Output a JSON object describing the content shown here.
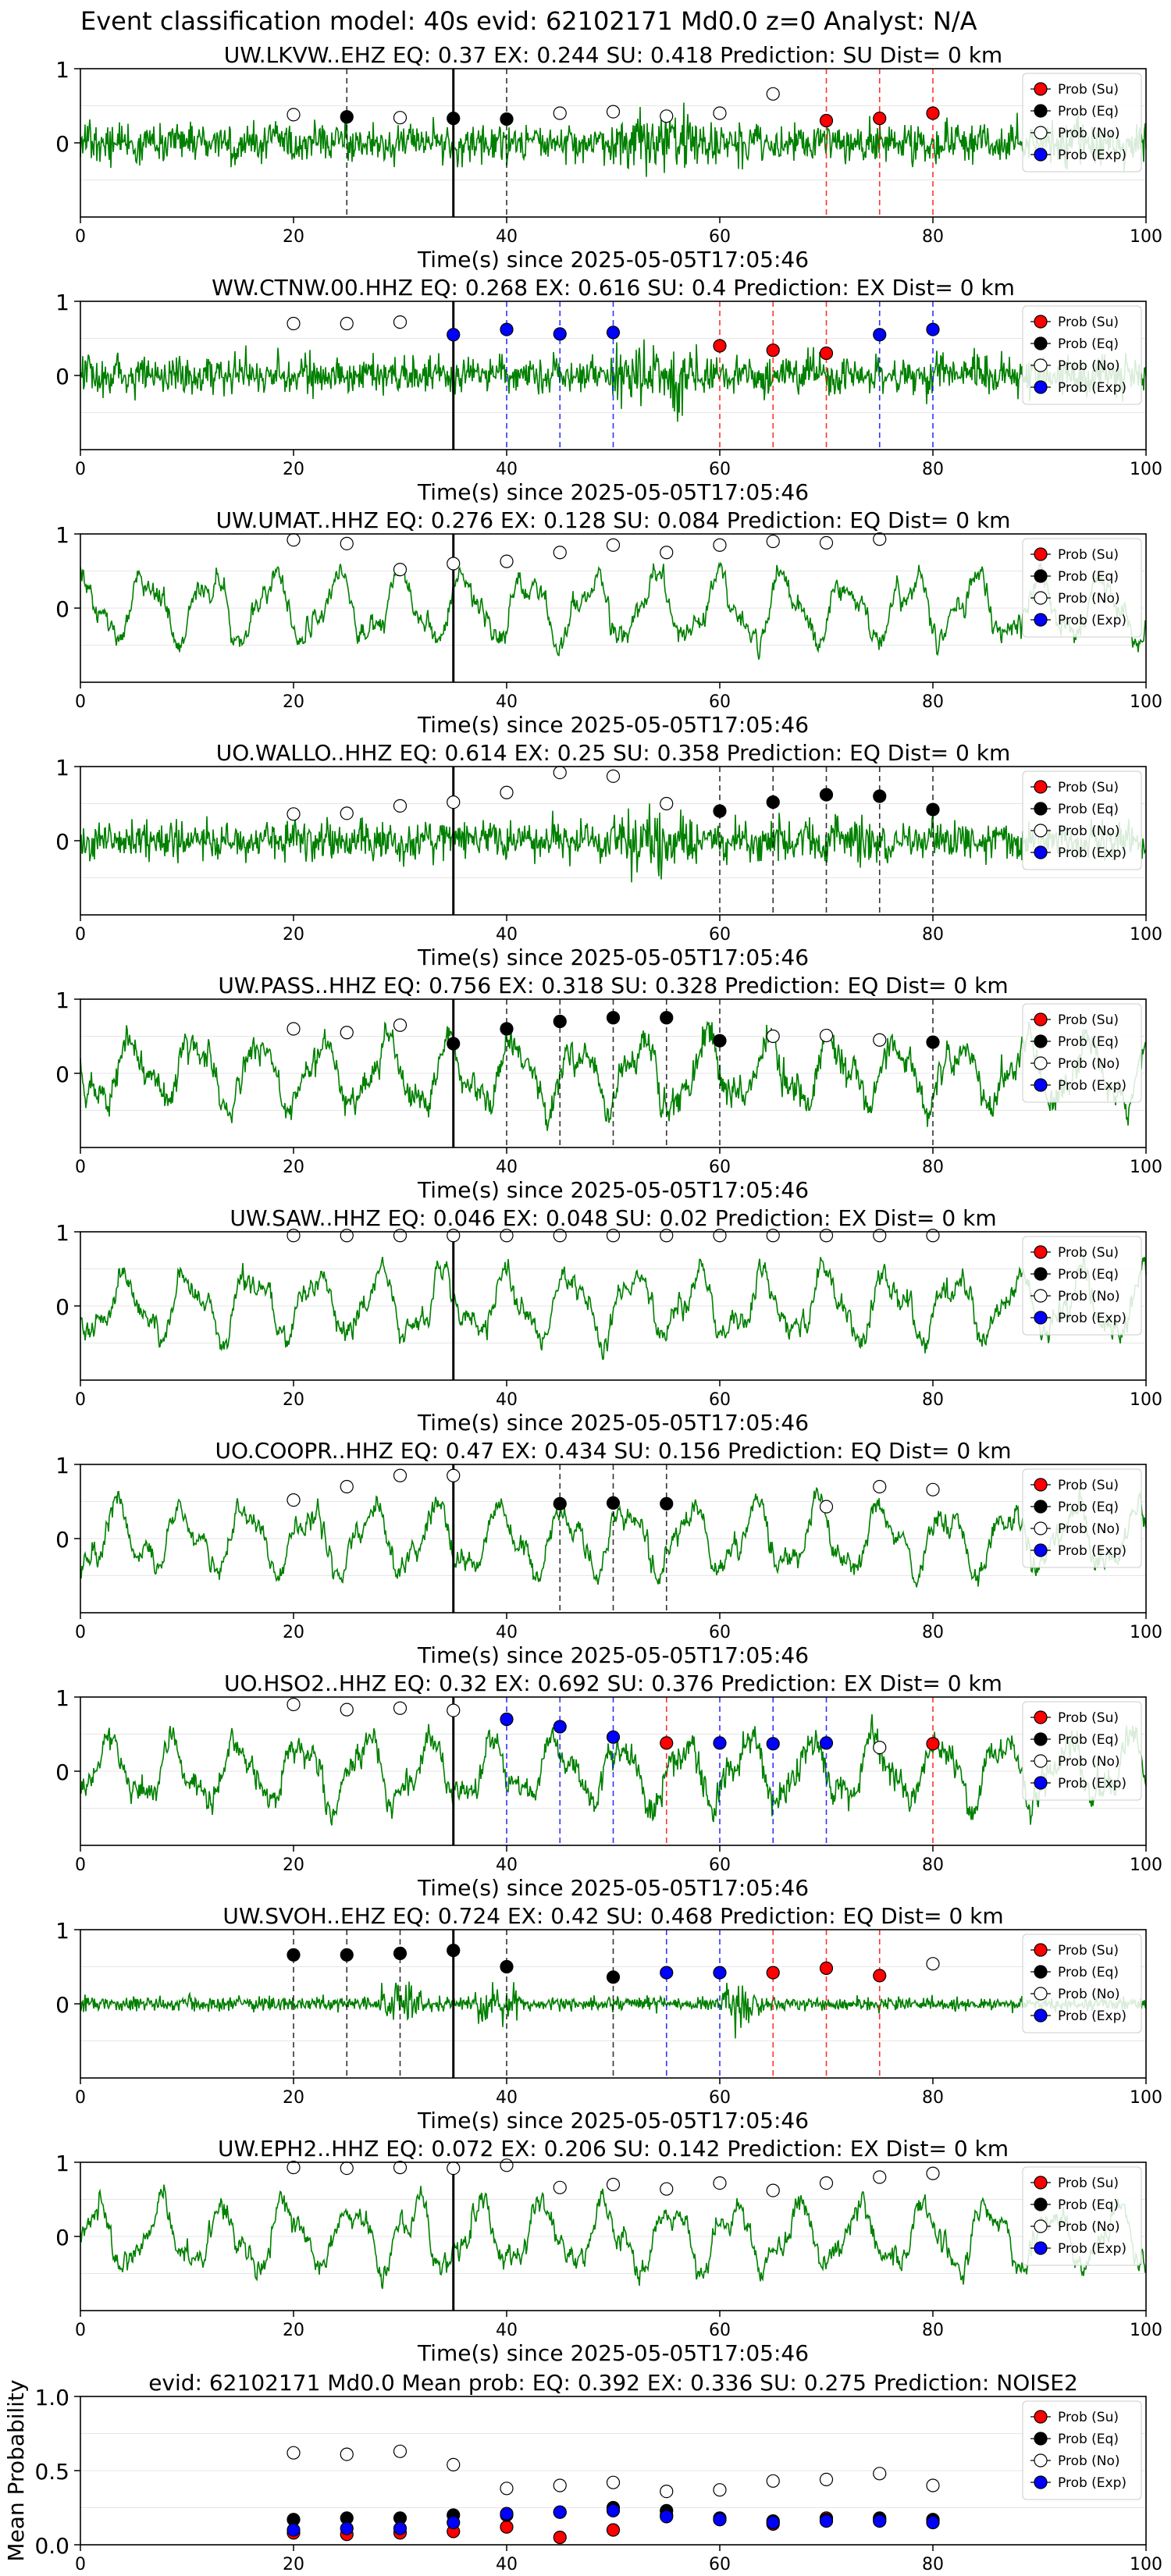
{
  "suptitle": "Event classification model: 40s evid: 62102171 Md0.0 z=0 Analyst: N/A",
  "legend_labels": [
    "Prob (Su)",
    "Prob (Eq)",
    "Prob (No)",
    "Prob (Exp)"
  ],
  "colors": {
    "su": "#ff0000",
    "eq": "#000000",
    "no": "#ffffff",
    "exp": "#0000ff",
    "waveform": "#008000",
    "marker_edge": "#000000"
  },
  "chart_data": [
    {
      "type": "line",
      "station": "UW.LKVW..EHZ",
      "title_parts": [
        "UW.LKVW..EHZ",
        "EQ: 0.37",
        "EX: 0.244",
        "SU: 0.418",
        "Prediction: SU",
        "Dist= 0 km"
      ],
      "xlabel": "Time(s) since 2025-05-05T17:05:46",
      "xlim": [
        0,
        100
      ],
      "ylim": [
        -1,
        1
      ],
      "xticks": [
        0,
        20,
        40,
        60,
        80,
        100
      ],
      "yticks": [
        0,
        1
      ],
      "arrival_time": 35,
      "waveform_style": "noisy",
      "markers": [
        {
          "t": 20,
          "cls": "no",
          "p": 0.38
        },
        {
          "t": 25,
          "cls": "eq",
          "p": 0.35
        },
        {
          "t": 30,
          "cls": "no",
          "p": 0.34
        },
        {
          "t": 35,
          "cls": "eq",
          "p": 0.33
        },
        {
          "t": 40,
          "cls": "eq",
          "p": 0.32
        },
        {
          "t": 45,
          "cls": "no",
          "p": 0.4
        },
        {
          "t": 50,
          "cls": "no",
          "p": 0.42
        },
        {
          "t": 55,
          "cls": "no",
          "p": 0.36
        },
        {
          "t": 60,
          "cls": "no",
          "p": 0.4
        },
        {
          "t": 65,
          "cls": "no",
          "p": 0.66
        },
        {
          "t": 70,
          "cls": "su",
          "p": 0.3
        },
        {
          "t": 75,
          "cls": "su",
          "p": 0.33
        },
        {
          "t": 80,
          "cls": "su",
          "p": 0.4
        }
      ]
    },
    {
      "type": "line",
      "station": "WW.CTNW.00.HHZ",
      "title_parts": [
        "WW.CTNW.00.HHZ",
        "EQ: 0.268",
        "EX: 0.616",
        "SU: 0.4",
        "Prediction: EX",
        "Dist= 0 km"
      ],
      "xlabel": "Time(s) since 2025-05-05T17:05:46",
      "xlim": [
        0,
        100
      ],
      "ylim": [
        -1,
        1
      ],
      "xticks": [
        0,
        20,
        40,
        60,
        80,
        100
      ],
      "yticks": [
        0,
        1
      ],
      "arrival_time": 35,
      "waveform_style": "noisy",
      "markers": [
        {
          "t": 20,
          "cls": "no",
          "p": 0.7
        },
        {
          "t": 25,
          "cls": "no",
          "p": 0.7
        },
        {
          "t": 30,
          "cls": "no",
          "p": 0.72
        },
        {
          "t": 35,
          "cls": "exp",
          "p": 0.55
        },
        {
          "t": 40,
          "cls": "exp",
          "p": 0.62
        },
        {
          "t": 45,
          "cls": "exp",
          "p": 0.56
        },
        {
          "t": 50,
          "cls": "exp",
          "p": 0.58
        },
        {
          "t": 60,
          "cls": "su",
          "p": 0.4
        },
        {
          "t": 65,
          "cls": "su",
          "p": 0.34
        },
        {
          "t": 70,
          "cls": "su",
          "p": 0.3
        },
        {
          "t": 75,
          "cls": "exp",
          "p": 0.55
        },
        {
          "t": 80,
          "cls": "exp",
          "p": 0.62
        }
      ]
    },
    {
      "type": "line",
      "station": "UW.UMAT..HHZ",
      "title_parts": [
        "UW.UMAT..HHZ",
        "EQ: 0.276",
        "EX: 0.128",
        "SU: 0.084",
        "Prediction: EQ",
        "Dist= 0 km"
      ],
      "xlabel": "Time(s) since 2025-05-05T17:05:46",
      "xlim": [
        0,
        100
      ],
      "ylim": [
        -1,
        1
      ],
      "xticks": [
        0,
        20,
        40,
        60,
        80,
        100
      ],
      "yticks": [
        0,
        1
      ],
      "arrival_time": 35,
      "waveform_style": "smooth",
      "markers": [
        {
          "t": 20,
          "cls": "no",
          "p": 0.92
        },
        {
          "t": 25,
          "cls": "no",
          "p": 0.87
        },
        {
          "t": 30,
          "cls": "no",
          "p": 0.52
        },
        {
          "t": 35,
          "cls": "no",
          "p": 0.6
        },
        {
          "t": 40,
          "cls": "no",
          "p": 0.63
        },
        {
          "t": 45,
          "cls": "no",
          "p": 0.75
        },
        {
          "t": 50,
          "cls": "no",
          "p": 0.85
        },
        {
          "t": 55,
          "cls": "no",
          "p": 0.75
        },
        {
          "t": 60,
          "cls": "no",
          "p": 0.85
        },
        {
          "t": 65,
          "cls": "no",
          "p": 0.9
        },
        {
          "t": 70,
          "cls": "no",
          "p": 0.88
        },
        {
          "t": 75,
          "cls": "no",
          "p": 0.93
        }
      ]
    },
    {
      "type": "line",
      "station": "UO.WALLO..HHZ",
      "title_parts": [
        "UO.WALLO..HHZ",
        "EQ: 0.614",
        "EX: 0.25",
        "SU: 0.358",
        "Prediction: EQ",
        "Dist= 0 km"
      ],
      "xlabel": "Time(s) since 2025-05-05T17:05:46",
      "xlim": [
        0,
        100
      ],
      "ylim": [
        -1,
        1
      ],
      "xticks": [
        0,
        20,
        40,
        60,
        80,
        100
      ],
      "yticks": [
        0,
        1
      ],
      "arrival_time": 35,
      "waveform_style": "noisy",
      "markers": [
        {
          "t": 20,
          "cls": "no",
          "p": 0.36
        },
        {
          "t": 25,
          "cls": "no",
          "p": 0.37
        },
        {
          "t": 30,
          "cls": "no",
          "p": 0.47
        },
        {
          "t": 35,
          "cls": "no",
          "p": 0.52
        },
        {
          "t": 40,
          "cls": "no",
          "p": 0.65
        },
        {
          "t": 45,
          "cls": "no",
          "p": 0.92
        },
        {
          "t": 50,
          "cls": "no",
          "p": 0.87
        },
        {
          "t": 55,
          "cls": "no",
          "p": 0.5
        },
        {
          "t": 60,
          "cls": "eq",
          "p": 0.4
        },
        {
          "t": 65,
          "cls": "eq",
          "p": 0.52
        },
        {
          "t": 70,
          "cls": "eq",
          "p": 0.62
        },
        {
          "t": 75,
          "cls": "eq",
          "p": 0.6
        },
        {
          "t": 80,
          "cls": "eq",
          "p": 0.42
        }
      ]
    },
    {
      "type": "line",
      "station": "UW.PASS..HHZ",
      "title_parts": [
        "UW.PASS..HHZ",
        "EQ: 0.756",
        "EX: 0.318",
        "SU: 0.328",
        "Prediction: EQ",
        "Dist= 0 km"
      ],
      "xlabel": "Time(s) since 2025-05-05T17:05:46",
      "xlim": [
        0,
        100
      ],
      "ylim": [
        -1,
        1
      ],
      "xticks": [
        0,
        20,
        40,
        60,
        80,
        100
      ],
      "yticks": [
        0,
        1
      ],
      "arrival_time": 35,
      "waveform_style": "mixed",
      "markers": [
        {
          "t": 20,
          "cls": "no",
          "p": 0.6
        },
        {
          "t": 25,
          "cls": "no",
          "p": 0.55
        },
        {
          "t": 30,
          "cls": "no",
          "p": 0.65
        },
        {
          "t": 35,
          "cls": "eq",
          "p": 0.4
        },
        {
          "t": 40,
          "cls": "eq",
          "p": 0.6
        },
        {
          "t": 45,
          "cls": "eq",
          "p": 0.7
        },
        {
          "t": 50,
          "cls": "eq",
          "p": 0.75
        },
        {
          "t": 55,
          "cls": "eq",
          "p": 0.75
        },
        {
          "t": 60,
          "cls": "eq",
          "p": 0.44
        },
        {
          "t": 65,
          "cls": "no",
          "p": 0.5
        },
        {
          "t": 70,
          "cls": "no",
          "p": 0.51
        },
        {
          "t": 75,
          "cls": "no",
          "p": 0.45
        },
        {
          "t": 80,
          "cls": "eq",
          "p": 0.42
        }
      ]
    },
    {
      "type": "line",
      "station": "UW.SAW..HHZ",
      "title_parts": [
        "UW.SAW..HHZ",
        "EQ: 0.046",
        "EX: 0.048",
        "SU: 0.02",
        "Prediction: EX",
        "Dist= 0 km"
      ],
      "xlabel": "Time(s) since 2025-05-05T17:05:46",
      "xlim": [
        0,
        100
      ],
      "ylim": [
        -1,
        1
      ],
      "xticks": [
        0,
        20,
        40,
        60,
        80,
        100
      ],
      "yticks": [
        0,
        1
      ],
      "arrival_time": 35,
      "waveform_style": "smooth",
      "markers": [
        {
          "t": 20,
          "cls": "no",
          "p": 0.95
        },
        {
          "t": 25,
          "cls": "no",
          "p": 0.95
        },
        {
          "t": 30,
          "cls": "no",
          "p": 0.95
        },
        {
          "t": 35,
          "cls": "no",
          "p": 0.95
        },
        {
          "t": 40,
          "cls": "no",
          "p": 0.95
        },
        {
          "t": 45,
          "cls": "no",
          "p": 0.95
        },
        {
          "t": 50,
          "cls": "no",
          "p": 0.95
        },
        {
          "t": 55,
          "cls": "no",
          "p": 0.95
        },
        {
          "t": 60,
          "cls": "no",
          "p": 0.95
        },
        {
          "t": 65,
          "cls": "no",
          "p": 0.95
        },
        {
          "t": 70,
          "cls": "no",
          "p": 0.95
        },
        {
          "t": 75,
          "cls": "no",
          "p": 0.95
        },
        {
          "t": 80,
          "cls": "no",
          "p": 0.95
        }
      ]
    },
    {
      "type": "line",
      "station": "UO.COOPR..HHZ",
      "title_parts": [
        "UO.COOPR..HHZ",
        "EQ: 0.47",
        "EX: 0.434",
        "SU: 0.156",
        "Prediction: EQ",
        "Dist= 0 km"
      ],
      "xlabel": "Time(s) since 2025-05-05T17:05:46",
      "xlim": [
        0,
        100
      ],
      "ylim": [
        -1,
        1
      ],
      "xticks": [
        0,
        20,
        40,
        60,
        80,
        100
      ],
      "yticks": [
        0,
        1
      ],
      "arrival_time": 35,
      "waveform_style": "smooth",
      "markers": [
        {
          "t": 20,
          "cls": "no",
          "p": 0.52
        },
        {
          "t": 25,
          "cls": "no",
          "p": 0.7
        },
        {
          "t": 30,
          "cls": "no",
          "p": 0.85
        },
        {
          "t": 35,
          "cls": "no",
          "p": 0.85
        },
        {
          "t": 45,
          "cls": "eq",
          "p": 0.47
        },
        {
          "t": 50,
          "cls": "eq",
          "p": 0.48
        },
        {
          "t": 55,
          "cls": "eq",
          "p": 0.47
        },
        {
          "t": 70,
          "cls": "no",
          "p": 0.43
        },
        {
          "t": 75,
          "cls": "no",
          "p": 0.7
        },
        {
          "t": 80,
          "cls": "no",
          "p": 0.66
        }
      ]
    },
    {
      "type": "line",
      "station": "UO.HSO2..HHZ",
      "title_parts": [
        "UO.HSO2..HHZ",
        "EQ: 0.32",
        "EX: 0.692",
        "SU: 0.376",
        "Prediction: EX",
        "Dist= 0 km"
      ],
      "xlabel": "Time(s) since 2025-05-05T17:05:46",
      "xlim": [
        0,
        100
      ],
      "ylim": [
        -1,
        1
      ],
      "xticks": [
        0,
        20,
        40,
        60,
        80,
        100
      ],
      "yticks": [
        0,
        1
      ],
      "arrival_time": 35,
      "waveform_style": "mixed",
      "markers": [
        {
          "t": 20,
          "cls": "no",
          "p": 0.9
        },
        {
          "t": 25,
          "cls": "no",
          "p": 0.83
        },
        {
          "t": 30,
          "cls": "no",
          "p": 0.85
        },
        {
          "t": 35,
          "cls": "no",
          "p": 0.82
        },
        {
          "t": 40,
          "cls": "exp",
          "p": 0.7
        },
        {
          "t": 45,
          "cls": "exp",
          "p": 0.6
        },
        {
          "t": 50,
          "cls": "exp",
          "p": 0.46
        },
        {
          "t": 55,
          "cls": "su",
          "p": 0.38
        },
        {
          "t": 60,
          "cls": "exp",
          "p": 0.38
        },
        {
          "t": 65,
          "cls": "exp",
          "p": 0.37
        },
        {
          "t": 70,
          "cls": "exp",
          "p": 0.38
        },
        {
          "t": 75,
          "cls": "no",
          "p": 0.32
        },
        {
          "t": 80,
          "cls": "su",
          "p": 0.37
        }
      ]
    },
    {
      "type": "line",
      "station": "UW.SVOH..EHZ",
      "title_parts": [
        "UW.SVOH..EHZ",
        "EQ: 0.724",
        "EX: 0.42",
        "SU: 0.468",
        "Prediction: EQ",
        "Dist= 0 km"
      ],
      "xlabel": "Time(s) since 2025-05-05T17:05:46",
      "xlim": [
        0,
        100
      ],
      "ylim": [
        -1,
        1
      ],
      "xticks": [
        0,
        20,
        40,
        60,
        80,
        100
      ],
      "yticks": [
        0,
        1
      ],
      "arrival_time": 35,
      "waveform_style": "quiet",
      "markers": [
        {
          "t": 20,
          "cls": "eq",
          "p": 0.66
        },
        {
          "t": 25,
          "cls": "eq",
          "p": 0.66
        },
        {
          "t": 30,
          "cls": "eq",
          "p": 0.68
        },
        {
          "t": 35,
          "cls": "eq",
          "p": 0.72
        },
        {
          "t": 40,
          "cls": "eq",
          "p": 0.5
        },
        {
          "t": 50,
          "cls": "eq",
          "p": 0.36
        },
        {
          "t": 55,
          "cls": "exp",
          "p": 0.42
        },
        {
          "t": 60,
          "cls": "exp",
          "p": 0.42
        },
        {
          "t": 65,
          "cls": "su",
          "p": 0.42
        },
        {
          "t": 70,
          "cls": "su",
          "p": 0.48
        },
        {
          "t": 75,
          "cls": "su",
          "p": 0.38
        },
        {
          "t": 80,
          "cls": "no",
          "p": 0.54
        }
      ]
    },
    {
      "type": "line",
      "station": "UW.EPH2..HHZ",
      "title_parts": [
        "UW.EPH2..HHZ",
        "EQ: 0.072",
        "EX: 0.206",
        "SU: 0.142",
        "Prediction: EX",
        "Dist= 0 km"
      ],
      "xlabel": "Time(s) since 2025-05-05T17:05:46",
      "xlim": [
        0,
        100
      ],
      "ylim": [
        -1,
        1
      ],
      "xticks": [
        0,
        20,
        40,
        60,
        80,
        100
      ],
      "yticks": [
        0,
        1
      ],
      "arrival_time": 35,
      "waveform_style": "smooth",
      "markers": [
        {
          "t": 20,
          "cls": "no",
          "p": 0.93
        },
        {
          "t": 25,
          "cls": "no",
          "p": 0.92
        },
        {
          "t": 30,
          "cls": "no",
          "p": 0.93
        },
        {
          "t": 35,
          "cls": "no",
          "p": 0.92
        },
        {
          "t": 40,
          "cls": "no",
          "p": 0.96
        },
        {
          "t": 45,
          "cls": "no",
          "p": 0.66
        },
        {
          "t": 50,
          "cls": "no",
          "p": 0.7
        },
        {
          "t": 55,
          "cls": "no",
          "p": 0.64
        },
        {
          "t": 60,
          "cls": "no",
          "p": 0.72
        },
        {
          "t": 65,
          "cls": "no",
          "p": 0.62
        },
        {
          "t": 70,
          "cls": "no",
          "p": 0.72
        },
        {
          "t": 75,
          "cls": "no",
          "p": 0.8
        },
        {
          "t": 80,
          "cls": "no",
          "p": 0.85
        }
      ]
    },
    {
      "type": "scatter",
      "station": "summary",
      "title_parts": [
        "evid: 62102171",
        "Md0.0",
        "Mean prob:",
        "EQ: 0.392",
        "EX: 0.336",
        "SU: 0.275",
        "Prediction: NOISE2"
      ],
      "xlabel": "",
      "ylabel": "Mean Probability",
      "xlim": [
        0,
        100
      ],
      "ylim": [
        0,
        1
      ],
      "xticks": [
        0,
        20,
        40,
        60,
        80,
        100
      ],
      "yticks": [
        0.0,
        0.5,
        1.0
      ],
      "ytick_labels": [
        "0.0",
        "0.5",
        "1.0"
      ],
      "x": [
        20,
        25,
        30,
        35,
        40,
        45,
        50,
        55,
        60,
        65,
        70,
        75,
        80
      ],
      "series": [
        {
          "name": "Prob (Su)",
          "cls": "su",
          "values": [
            0.08,
            0.07,
            0.08,
            0.09,
            0.12,
            0.05,
            0.1,
            0.2,
            0.17,
            0.14,
            0.18,
            0.17,
            0.16
          ]
        },
        {
          "name": "Prob (Eq)",
          "cls": "eq",
          "values": [
            0.17,
            0.18,
            0.18,
            0.2,
            0.2,
            0.22,
            0.25,
            0.23,
            0.18,
            0.16,
            0.17,
            0.18,
            0.17
          ]
        },
        {
          "name": "Prob (No)",
          "cls": "no",
          "values": [
            0.62,
            0.61,
            0.63,
            0.54,
            0.38,
            0.4,
            0.42,
            0.36,
            0.37,
            0.43,
            0.44,
            0.48,
            0.4
          ]
        },
        {
          "name": "Prob (Exp)",
          "cls": "exp",
          "values": [
            0.1,
            0.11,
            0.11,
            0.15,
            0.21,
            0.22,
            0.23,
            0.19,
            0.17,
            0.15,
            0.16,
            0.16,
            0.15
          ]
        }
      ]
    }
  ]
}
